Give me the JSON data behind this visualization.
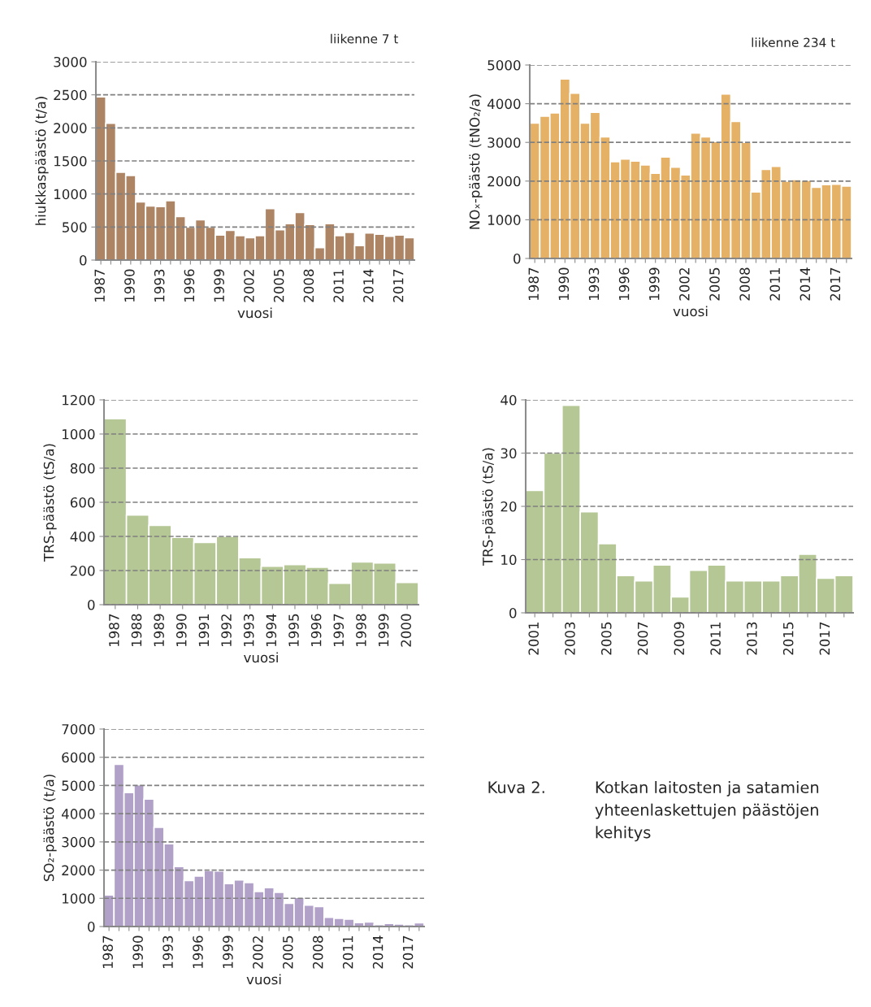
{
  "chart_data": [
    {
      "type": "bar",
      "ylabel": "hiukkaspäästö (t/a)",
      "xlabel": "vuosi",
      "annotations": [
        "liikenne 7 t"
      ],
      "color": "#ad8464",
      "grid": "y",
      "ylim": [
        0,
        3000
      ],
      "yticks": [
        0,
        500,
        1000,
        1500,
        2000,
        2500,
        3000
      ],
      "categories": [
        "1987",
        null,
        null,
        "1990",
        null,
        null,
        "1993",
        null,
        null,
        "1996",
        null,
        null,
        "1999",
        null,
        null,
        "2002",
        null,
        null,
        "2005",
        null,
        null,
        "2008",
        null,
        null,
        "2011",
        null,
        null,
        "2014",
        null,
        null,
        "2017",
        null
      ],
      "values": [
        2470,
        2070,
        1330,
        1280,
        880,
        820,
        810,
        900,
        660,
        500,
        610,
        500,
        380,
        450,
        370,
        340,
        370,
        780,
        460,
        550,
        720,
        540,
        190,
        550,
        370,
        420,
        220,
        410,
        390,
        360,
        380,
        340
      ]
    },
    {
      "type": "bar",
      "ylabel": "NOₓ-päästö (tNO₂/a)",
      "xlabel": "vuosi",
      "annotations": [
        "liikenne 234 t"
      ],
      "color": "#e5b166",
      "grid": "y",
      "ylim": [
        0,
        5000
      ],
      "yticks": [
        0,
        1000,
        2000,
        3000,
        4000,
        5000
      ],
      "categories": [
        "1987",
        null,
        null,
        "1990",
        null,
        null,
        "1993",
        null,
        null,
        "1996",
        null,
        null,
        "1999",
        null,
        null,
        "2002",
        null,
        null,
        "2005",
        null,
        null,
        "2008",
        null,
        null,
        "2011",
        null,
        null,
        "2014",
        null,
        null,
        "2017",
        null
      ],
      "values": [
        3500,
        3680,
        3760,
        4640,
        4270,
        3500,
        3780,
        3140,
        2500,
        2570,
        2520,
        2420,
        2200,
        2620,
        2360,
        2160,
        3240,
        3140,
        3020,
        4250,
        3540,
        3000,
        1720,
        2300,
        2380,
        2000,
        2040,
        2020,
        1840,
        1910,
        1920,
        1870
      ]
    },
    {
      "type": "bar",
      "ylabel": "TRS-päästö (tS/a)",
      "xlabel": "vuosi",
      "color": "#b5c794",
      "grid": "y",
      "ylim": [
        0,
        1200
      ],
      "yticks": [
        0,
        200,
        400,
        600,
        800,
        1000,
        1200
      ],
      "categories": [
        "1987",
        "1988",
        "1989",
        "1990",
        "1991",
        "1992",
        "1993",
        "1994",
        "1995",
        "1996",
        "1997",
        "1998",
        "1999",
        "2000"
      ],
      "values": [
        1090,
        525,
        465,
        395,
        365,
        400,
        275,
        225,
        235,
        220,
        125,
        250,
        245,
        130
      ]
    },
    {
      "type": "bar",
      "ylabel": "TRS-päästö (tS/a)",
      "color": "#b5c794",
      "grid": "y",
      "ylim": [
        0,
        40
      ],
      "yticks": [
        0,
        10,
        20,
        30,
        40
      ],
      "categories": [
        "2001",
        null,
        "2003",
        null,
        "2005",
        null,
        "2007",
        null,
        "2009",
        null,
        "2011",
        null,
        "2013",
        null,
        "2015",
        null,
        "2017",
        null
      ],
      "values": [
        23,
        30,
        39,
        19,
        13,
        7,
        6,
        9,
        3,
        8,
        9,
        6,
        6,
        6,
        7,
        11,
        6.5,
        7
      ]
    },
    {
      "type": "bar",
      "ylabel": "SO₂-päästö (t/a)",
      "xlabel": "vuosi",
      "color": "#b1a1c8",
      "grid": "y",
      "ylim": [
        0,
        7000
      ],
      "yticks": [
        0,
        1000,
        2000,
        3000,
        4000,
        5000,
        6000,
        7000
      ],
      "categories": [
        "1987",
        null,
        null,
        "1990",
        null,
        null,
        "1993",
        null,
        null,
        "1996",
        null,
        null,
        "1999",
        null,
        null,
        "2002",
        null,
        null,
        "2005",
        null,
        null,
        "2008",
        null,
        null,
        "2011",
        null,
        null,
        "2014",
        null,
        null,
        "2017",
        null
      ],
      "values": [
        1120,
        5750,
        4750,
        5020,
        4520,
        3520,
        2930,
        2130,
        1630,
        1790,
        1980,
        1970,
        1520,
        1650,
        1560,
        1240,
        1380,
        1210,
        820,
        1030,
        760,
        710,
        330,
        290,
        260,
        140,
        160,
        70,
        110,
        90,
        70,
        130
      ]
    },
    {
      "type": "other",
      "annotations": [
        "Kuva 2.",
        "Kotkan laitosten ja satamien\nyhteenlaskettujen päästöjen\nkehitys"
      ]
    }
  ]
}
